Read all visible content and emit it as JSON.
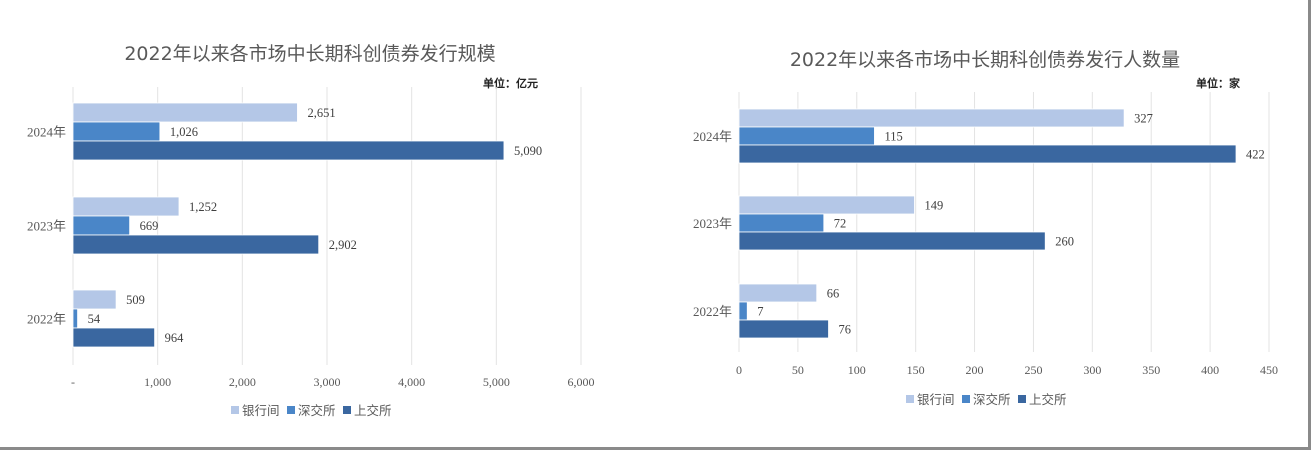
{
  "chart_data": [
    {
      "type": "bar",
      "orientation": "horizontal",
      "title": "2022年以来各市场中长期科创债券发行规模",
      "unit_label": "单位：亿元",
      "categories": [
        "2024年",
        "2023年",
        "2022年"
      ],
      "series": [
        {
          "name": "银行间",
          "color": "#b4c7e7",
          "values": [
            2651,
            1252,
            509
          ],
          "labels": [
            "2,651",
            "1,252",
            "509"
          ]
        },
        {
          "name": "深交所",
          "color": "#4a86c8",
          "values": [
            1026,
            669,
            54
          ],
          "labels": [
            "1,026",
            "669",
            "54"
          ]
        },
        {
          "name": "上交所",
          "color": "#3a67a0",
          "values": [
            5090,
            2902,
            964
          ],
          "labels": [
            "5,090",
            "2,902",
            "964"
          ]
        }
      ],
      "xlim": [
        0,
        6000
      ],
      "xticks": [
        0,
        1000,
        2000,
        3000,
        4000,
        5000,
        6000
      ],
      "xtick_labels": [
        "-",
        "1,000",
        "2,000",
        "3,000",
        "4,000",
        "5,000",
        "6,000"
      ],
      "grid": "vertical",
      "legend": "bottom"
    },
    {
      "type": "bar",
      "orientation": "horizontal",
      "title": "2022年以来各市场中长期科创债券发行人数量",
      "unit_label": "单位：家",
      "categories": [
        "2024年",
        "2023年",
        "2022年"
      ],
      "series": [
        {
          "name": "银行间",
          "color": "#b4c7e7",
          "values": [
            327,
            149,
            66
          ],
          "labels": [
            "327",
            "149",
            "66"
          ]
        },
        {
          "name": "深交所",
          "color": "#4a86c8",
          "values": [
            115,
            72,
            7
          ],
          "labels": [
            "115",
            "72",
            "7"
          ]
        },
        {
          "name": "上交所",
          "color": "#3a67a0",
          "values": [
            422,
            260,
            76
          ],
          "labels": [
            "422",
            "260",
            "76"
          ]
        }
      ],
      "xlim": [
        0,
        450
      ],
      "xticks": [
        0,
        50,
        100,
        150,
        200,
        250,
        300,
        350,
        400,
        450
      ],
      "xtick_labels": [
        "0",
        "50",
        "100",
        "150",
        "200",
        "250",
        "300",
        "350",
        "400",
        "450"
      ],
      "grid": "vertical",
      "legend": "bottom"
    }
  ]
}
